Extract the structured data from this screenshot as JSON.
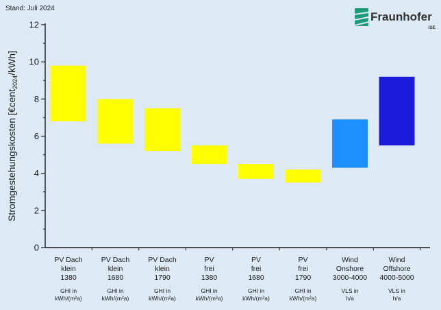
{
  "header": {
    "stand": "Stand: Juli 2024",
    "logo_text": "Fraunhofer",
    "logo_sub": "ISE"
  },
  "chart_data": {
    "type": "bar",
    "subtype": "floating-range",
    "ylabel": "Stromgestehungskosten [€cent2024/kWh]",
    "ylabel_parts": {
      "pre": "Stromgestehungskosten [€cent",
      "sub": "2024",
      "post": "/kWh]"
    },
    "ylim": [
      0,
      12
    ],
    "yticks": [
      0,
      2,
      4,
      6,
      8,
      10,
      12
    ],
    "grid": false,
    "categories": [
      {
        "lines": [
          "PV Dach",
          "klein",
          "1380"
        ],
        "unit": [
          "GHI in",
          "kWh/(m²a)"
        ],
        "low": 6.8,
        "high": 9.8,
        "color": "#ffff00"
      },
      {
        "lines": [
          "PV Dach",
          "klein",
          "1680"
        ],
        "unit": [
          "GHI in",
          "kWh/(m²a)"
        ],
        "low": 5.6,
        "high": 8.0,
        "color": "#ffff00"
      },
      {
        "lines": [
          "PV Dach",
          "klein",
          "1790"
        ],
        "unit": [
          "GHI in",
          "kWh/(m²a)"
        ],
        "low": 5.2,
        "high": 7.5,
        "color": "#ffff00"
      },
      {
        "lines": [
          "PV",
          "frei",
          "1380"
        ],
        "unit": [
          "GHI in",
          "kWh/(m²a)"
        ],
        "low": 4.5,
        "high": 5.5,
        "color": "#ffff00"
      },
      {
        "lines": [
          "PV",
          "frei",
          "1680"
        ],
        "unit": [
          "GHI in",
          "kWh/(m²a)"
        ],
        "low": 3.7,
        "high": 4.5,
        "color": "#ffff00"
      },
      {
        "lines": [
          "PV",
          "frei",
          "1790"
        ],
        "unit": [
          "GHI in",
          "kWh/(m²a)"
        ],
        "low": 3.5,
        "high": 4.2,
        "color": "#ffff00"
      },
      {
        "lines": [
          "Wind",
          "Onshore",
          "3000-4000"
        ],
        "unit": [
          "VLS in",
          "h/a"
        ],
        "low": 4.3,
        "high": 6.9,
        "color": "#1e8fff"
      },
      {
        "lines": [
          "Wind",
          "Offshore",
          "4000-5000"
        ],
        "unit": [
          "VLS in",
          "h/a"
        ],
        "low": 5.5,
        "high": 9.2,
        "color": "#1b1bd9"
      }
    ]
  }
}
